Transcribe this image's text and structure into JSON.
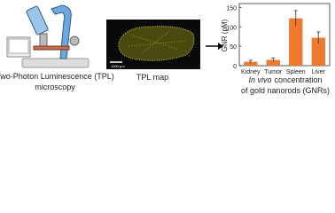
{
  "microscopy": {
    "caption": [
      "Two-Photon Luminescence (TPL)",
      "microscopy"
    ]
  },
  "tpl_map": {
    "caption": "TPL map",
    "scale_bar": "1000 μm"
  },
  "chart_data": {
    "type": "bar",
    "ylabel": "GNR (pM)",
    "categories": [
      "Kidney",
      "Tumor",
      "Spleen",
      "Liver"
    ],
    "values": [
      10,
      15,
      122,
      72
    ],
    "errors": [
      4,
      5,
      20,
      15
    ],
    "color": "#ee7a30",
    "ylim": [
      0,
      160
    ],
    "yticks": [
      0,
      50,
      100,
      150
    ],
    "grid": false,
    "caption": {
      "italic": "In vivo",
      "rest": "concentration",
      "line2": "of gold nanorods (GNRs)"
    }
  }
}
